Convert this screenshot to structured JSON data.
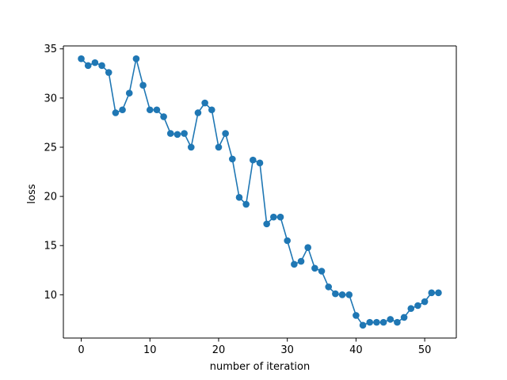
{
  "chart_data": {
    "type": "line",
    "title": "",
    "xlabel": "number of iteration",
    "ylabel": "loss",
    "xlim": [
      -2.6,
      54.6
    ],
    "ylim": [
      5.6,
      35.3
    ],
    "xticks": [
      0,
      10,
      20,
      30,
      40,
      50
    ],
    "yticks": [
      10,
      15,
      20,
      25,
      30,
      35
    ],
    "grid": false,
    "legend": "none",
    "marker": "circle",
    "colors": {
      "series": "#1f77b4",
      "axes": "#000000",
      "background": "#ffffff"
    },
    "series": [
      {
        "x": [
          0,
          1,
          2,
          3,
          4,
          5,
          6,
          7,
          8,
          9,
          10,
          11,
          12,
          13,
          14,
          15,
          16,
          17,
          18,
          19,
          20,
          21,
          22,
          23,
          24,
          25,
          26,
          27,
          28,
          29,
          30,
          31,
          32,
          33,
          34,
          35,
          36,
          37,
          38,
          39,
          40,
          41,
          42,
          43,
          44,
          45,
          46,
          47,
          48,
          49,
          50,
          51,
          52
        ],
        "y": [
          34.0,
          33.3,
          33.6,
          33.3,
          32.6,
          28.5,
          28.8,
          30.5,
          34.0,
          31.3,
          28.8,
          28.8,
          28.1,
          26.4,
          26.3,
          26.4,
          25.0,
          28.5,
          29.5,
          28.8,
          25.0,
          26.4,
          23.8,
          19.9,
          19.2,
          23.7,
          23.4,
          17.2,
          17.9,
          17.9,
          15.5,
          13.1,
          13.4,
          14.8,
          12.7,
          12.4,
          10.8,
          10.1,
          10.0,
          10.0,
          7.9,
          6.9,
          7.2,
          7.2,
          7.2,
          7.5,
          7.2,
          7.7,
          8.6,
          8.9,
          9.3,
          10.2,
          10.2
        ]
      }
    ]
  }
}
